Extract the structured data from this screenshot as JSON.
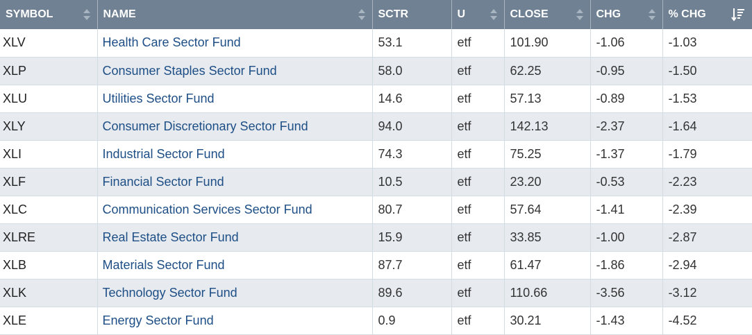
{
  "columns": [
    {
      "key": "symbol",
      "label": "SYMBOL"
    },
    {
      "key": "name",
      "label": "NAME"
    },
    {
      "key": "sctr",
      "label": "SCTR"
    },
    {
      "key": "u",
      "label": "U"
    },
    {
      "key": "close",
      "label": "CLOSE"
    },
    {
      "key": "chg",
      "label": "CHG"
    },
    {
      "key": "pchg",
      "label": "% CHG"
    }
  ],
  "sort": {
    "column": "pchg",
    "direction": "descending"
  },
  "rows": [
    {
      "symbol": "XLV",
      "name": "Health Care Sector Fund",
      "sctr": "53.1",
      "u": "etf",
      "close": "101.90",
      "chg": "-1.06",
      "pchg": "-1.03"
    },
    {
      "symbol": "XLP",
      "name": "Consumer Staples Sector Fund",
      "sctr": "58.0",
      "u": "etf",
      "close": "62.25",
      "chg": "-0.95",
      "pchg": "-1.50"
    },
    {
      "symbol": "XLU",
      "name": "Utilities Sector Fund",
      "sctr": "14.6",
      "u": "etf",
      "close": "57.13",
      "chg": "-0.89",
      "pchg": "-1.53"
    },
    {
      "symbol": "XLY",
      "name": "Consumer Discretionary Sector Fund",
      "sctr": "94.0",
      "u": "etf",
      "close": "142.13",
      "chg": "-2.37",
      "pchg": "-1.64"
    },
    {
      "symbol": "XLI",
      "name": "Industrial Sector Fund",
      "sctr": "74.3",
      "u": "etf",
      "close": "75.25",
      "chg": "-1.37",
      "pchg": "-1.79"
    },
    {
      "symbol": "XLF",
      "name": "Financial Sector Fund",
      "sctr": "10.5",
      "u": "etf",
      "close": "23.20",
      "chg": "-0.53",
      "pchg": "-2.23"
    },
    {
      "symbol": "XLC",
      "name": "Communication Services Sector Fund",
      "sctr": "80.7",
      "u": "etf",
      "close": "57.64",
      "chg": "-1.41",
      "pchg": "-2.39"
    },
    {
      "symbol": "XLRE",
      "name": "Real Estate Sector Fund",
      "sctr": "15.9",
      "u": "etf",
      "close": "33.85",
      "chg": "-1.00",
      "pchg": "-2.87"
    },
    {
      "symbol": "XLB",
      "name": "Materials Sector Fund",
      "sctr": "87.7",
      "u": "etf",
      "close": "61.47",
      "chg": "-1.86",
      "pchg": "-2.94"
    },
    {
      "symbol": "XLK",
      "name": "Technology Sector Fund",
      "sctr": "89.6",
      "u": "etf",
      "close": "110.66",
      "chg": "-3.56",
      "pchg": "-3.12"
    },
    {
      "symbol": "XLE",
      "name": "Energy Sector Fund",
      "sctr": "0.9",
      "u": "etf",
      "close": "30.21",
      "chg": "-1.43",
      "pchg": "-4.52"
    }
  ],
  "colors": {
    "header_bg": "#6f8192",
    "link": "#1d4e85",
    "alt_row": "#e7ebf0"
  }
}
